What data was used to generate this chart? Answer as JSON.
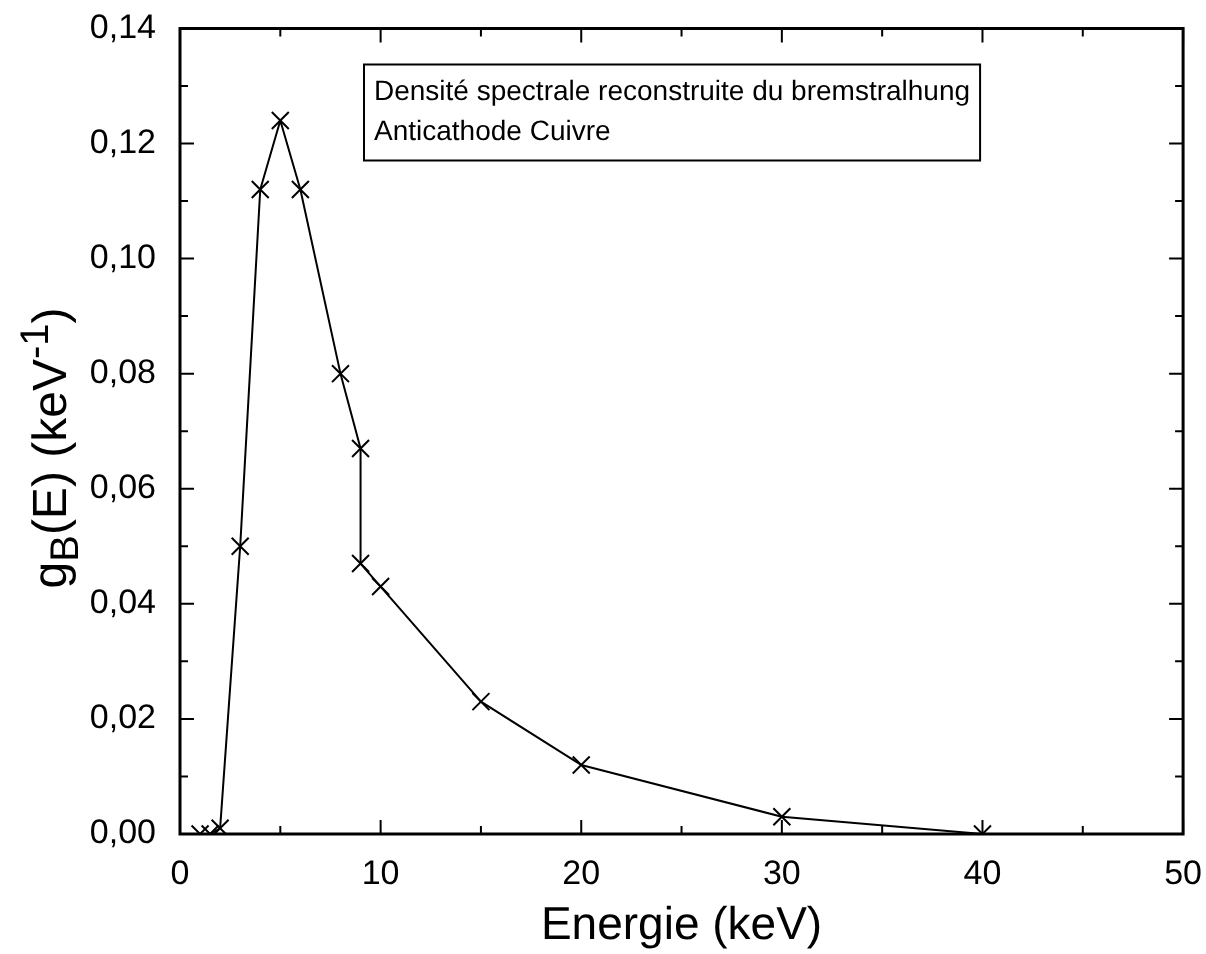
{
  "chart_data": {
    "type": "line",
    "xlabel": "Energie (keV)",
    "ylabel": "g$_{B}$(E) (keV$^{-1}$)",
    "annotations": [
      "Densité spectrale reconstruite du bremstralhung",
      "Anticathode Cuivre"
    ],
    "x": [
      1,
      1.5,
      2,
      3,
      4,
      5,
      6,
      8,
      9,
      9,
      10,
      15,
      20,
      30,
      40
    ],
    "series": [
      {
        "color": "#000000",
        "values": [
          0,
          0,
          0.001,
          0.05,
          0.112,
          0.124,
          0.112,
          0.08,
          0.067,
          0.047,
          0.043,
          0.023,
          0.012,
          0.003,
          0
        ]
      }
    ],
    "xlim": [
      0,
      50
    ],
    "xticks": [
      0,
      {
        "value": 5,
        "label": null
      },
      10,
      {
        "value": 15,
        "label": null
      },
      20,
      {
        "value": 25,
        "label": null
      },
      30,
      {
        "value": 35,
        "label": null
      },
      40,
      {
        "value": 45,
        "label": null
      },
      50
    ],
    "ylim": [
      0,
      0.14
    ],
    "yticks": [
      {
        "value": 0,
        "label": "0,00"
      },
      {
        "value": 0.01,
        "label": null
      },
      {
        "value": 0.02,
        "label": "0,02"
      },
      {
        "value": 0.03,
        "label": null
      },
      {
        "value": 0.04,
        "label": "0,04"
      },
      {
        "value": 0.05,
        "label": null
      },
      {
        "value": 0.06,
        "label": "0,06"
      },
      {
        "value": 0.07,
        "label": null
      },
      {
        "value": 0.08,
        "label": "0,08"
      },
      {
        "value": 0.09,
        "label": null
      },
      {
        "value": 0.1,
        "label": "0,10"
      },
      {
        "value": 0.11,
        "label": null
      },
      {
        "value": 0.12,
        "label": "0,12"
      },
      {
        "value": 0.13,
        "label": null
      },
      {
        "value": 0.14,
        "label": "0,14"
      }
    ],
    "marker": "cross",
    "line_style": "solid"
  }
}
